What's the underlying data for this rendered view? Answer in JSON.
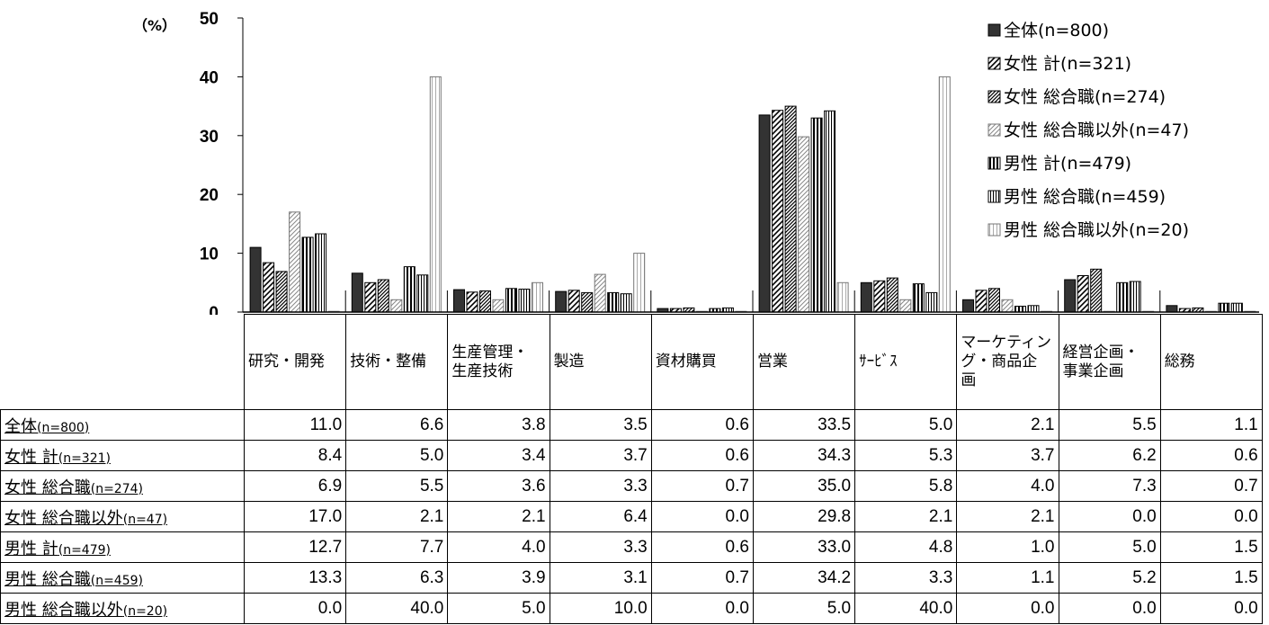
{
  "chart_data": {
    "type": "bar",
    "y_unit": "（%）",
    "ylim": [
      0,
      50
    ],
    "yticks": [
      "0",
      "10",
      "20",
      "30",
      "40",
      "50"
    ],
    "categories": [
      "研究・開発",
      "技術・整備",
      "生産管理・生産技術",
      "製造",
      "資材購買",
      "営業",
      "ｻｰﾋﾞｽ",
      "マーケティング・商品企画",
      "経営企画・事業企画",
      "総務"
    ],
    "category_lines": [
      [
        "研究・開発"
      ],
      [
        "技術・整備"
      ],
      [
        "生産管理・",
        "生産技術"
      ],
      [
        "製造"
      ],
      [
        "資材購買"
      ],
      [
        "営業"
      ],
      [
        "ｻｰﾋﾞｽ"
      ],
      [
        "マーケティン",
        "グ・商品企",
        "画"
      ],
      [
        "経営企画・",
        "事業企画"
      ],
      [
        "総務"
      ]
    ],
    "series": [
      {
        "name": "全体(n=800)",
        "values": [
          11.0,
          6.6,
          3.8,
          3.5,
          0.6,
          33.5,
          5.0,
          2.1,
          5.5,
          1.1
        ]
      },
      {
        "name": "女性 計(n=321)",
        "values": [
          8.4,
          5.0,
          3.4,
          3.7,
          0.6,
          34.3,
          5.3,
          3.7,
          6.2,
          0.6
        ]
      },
      {
        "name": "女性 総合職(n=274)",
        "values": [
          6.9,
          5.5,
          3.6,
          3.3,
          0.7,
          35.0,
          5.8,
          4.0,
          7.3,
          0.7
        ]
      },
      {
        "name": "女性 総合職以外(n=47)",
        "values": [
          17.0,
          2.1,
          2.1,
          6.4,
          0.0,
          29.8,
          2.1,
          2.1,
          0.0,
          0.0
        ]
      },
      {
        "name": "男性 計(n=479)",
        "values": [
          12.7,
          7.7,
          4.0,
          3.3,
          0.6,
          33.0,
          4.8,
          1.0,
          5.0,
          1.5
        ]
      },
      {
        "name": "男性 総合職(n=459)",
        "values": [
          13.3,
          6.3,
          3.9,
          3.1,
          0.7,
          34.2,
          3.3,
          1.1,
          5.2,
          1.5
        ]
      },
      {
        "name": "男性 総合職以外(n=20)",
        "values": [
          0.0,
          40.0,
          5.0,
          10.0,
          0.0,
          5.0,
          40.0,
          0.0,
          0.0,
          0.0
        ]
      }
    ],
    "legend_position": "top-right",
    "grid": false,
    "table_rows": [
      {
        "label": "全体",
        "n": "(n=800)",
        "values": [
          "11.0",
          "6.6",
          "3.8",
          "3.5",
          "0.6",
          "33.5",
          "5.0",
          "2.1",
          "5.5",
          "1.1"
        ]
      },
      {
        "label": "女性 計",
        "n": "(n=321)",
        "values": [
          "8.4",
          "5.0",
          "3.4",
          "3.7",
          "0.6",
          "34.3",
          "5.3",
          "3.7",
          "6.2",
          "0.6"
        ]
      },
      {
        "label": "女性 総合職",
        "n": "(n=274)",
        "values": [
          "6.9",
          "5.5",
          "3.6",
          "3.3",
          "0.7",
          "35.0",
          "5.8",
          "4.0",
          "7.3",
          "0.7"
        ]
      },
      {
        "label": "女性 総合職以外",
        "n": "(n=47)",
        "values": [
          "17.0",
          "2.1",
          "2.1",
          "6.4",
          "0.0",
          "29.8",
          "2.1",
          "2.1",
          "0.0",
          "0.0"
        ]
      },
      {
        "label": "男性 計",
        "n": "(n=479)",
        "values": [
          "12.7",
          "7.7",
          "4.0",
          "3.3",
          "0.6",
          "33.0",
          "4.8",
          "1.0",
          "5.0",
          "1.5"
        ]
      },
      {
        "label": "男性 総合職",
        "n": "(n=459)",
        "values": [
          "13.3",
          "6.3",
          "3.9",
          "3.1",
          "0.7",
          "34.2",
          "3.3",
          "1.1",
          "5.2",
          "1.5"
        ]
      },
      {
        "label": "男性 総合職以外",
        "n": "(n=20)",
        "values": [
          "0.0",
          "40.0",
          "5.0",
          "10.0",
          "0.0",
          "5.0",
          "40.0",
          "0.0",
          "0.0",
          "0.0"
        ]
      }
    ]
  }
}
